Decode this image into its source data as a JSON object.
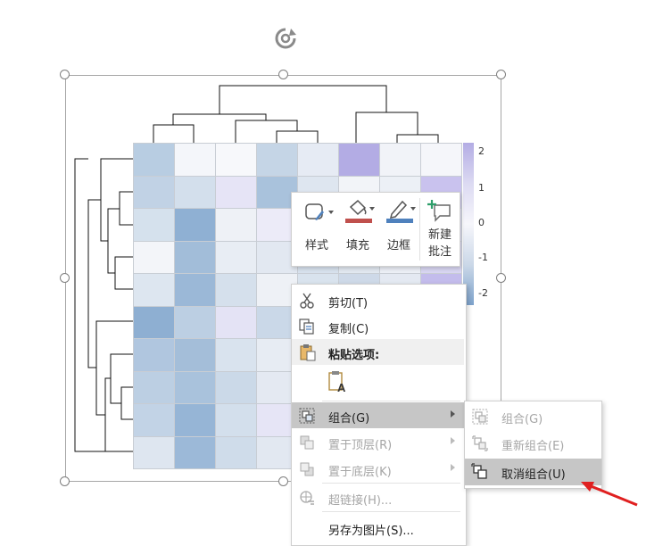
{
  "toolbar": {
    "style_label": "样式",
    "fill_label": "填充",
    "border_label": "边框",
    "new_comment_label": "新建\n批注",
    "fill_color": "#c0504d",
    "border_color": "#4f81bd"
  },
  "context_menu": {
    "cut": "剪切(T)",
    "copy": "复制(C)",
    "paste_options": "粘贴选项:",
    "group": "组合(G)",
    "bring_to_front": "置于顶层(R)",
    "send_to_back": "置于底层(K)",
    "hyperlink": "超链接(H)...",
    "save_as_picture": "另存为图片(S)..."
  },
  "submenu": {
    "group": "组合(G)",
    "regroup": "重新组合(E)",
    "ungroup": "取消组合(U)"
  },
  "colorbar_ticks": [
    "2",
    "1",
    "0",
    "-1",
    "-2"
  ],
  "heatmap_colors": [
    [
      "#b8cde2",
      "#f4f6fa",
      "#f7f8fb",
      "#c5d5e6",
      "#e6ebf4",
      "#b3ace4",
      "#f1f3f8",
      "#f5f6fa"
    ],
    [
      "#c1d2e5",
      "#d3dfec",
      "#e6e4f6",
      "#a9c2dc",
      "#dee6f0",
      "#f2f4f8",
      "#ecf0f6",
      "#c9c2ee"
    ],
    [
      "#d5e1ed",
      "#8fb0d3",
      "#eef1f6",
      "#ecebf8",
      "#dfe6f0",
      "#e5ebf2",
      "#e9eef5",
      "#dcd9f3"
    ],
    [
      "#f3f5f9",
      "#a2bdd9",
      "#e8edf4",
      "#e2e8f1",
      "#d7e1ed",
      "#e1e8f0",
      "#eceff6",
      "#d8d5f1"
    ],
    [
      "#dde6f0",
      "#9bb8d7",
      "#d5e0ec",
      "#eef1f6",
      "#d9e3ee",
      "#ced9e8",
      "#e4e9f2",
      "#c3bcec"
    ],
    [
      "#8eafd2",
      "#bccfe3",
      "#e4e3f5",
      "#cad8e8",
      "#e2e8f1",
      "#dee5ef",
      "#e7ecf3",
      "#dfe3ef"
    ],
    [
      "#b0c6df",
      "#a4bed9",
      "#d9e3ee",
      "#e7ecf3",
      "#e0e7f0",
      "#e5eaf2",
      "#edf0f6",
      "#e3e8f1"
    ],
    [
      "#bccfe3",
      "#a9c2dc",
      "#cbd9e8",
      "#e4e9f2",
      "#dbe4ef",
      "#e1e7f0",
      "#e9edf4",
      "#e5eaf2"
    ],
    [
      "#c2d3e6",
      "#96b5d6",
      "#d3dfec",
      "#e6e5f6",
      "#dfe6f0",
      "#e3e9f1",
      "#eaeef5",
      "#e2e7f0"
    ],
    [
      "#dee6f0",
      "#9cb9d8",
      "#cfdcea",
      "#e2e8f1",
      "#dce4ee",
      "#e1e7f0",
      "#e8ecf4",
      "#e4e9f2"
    ]
  ]
}
